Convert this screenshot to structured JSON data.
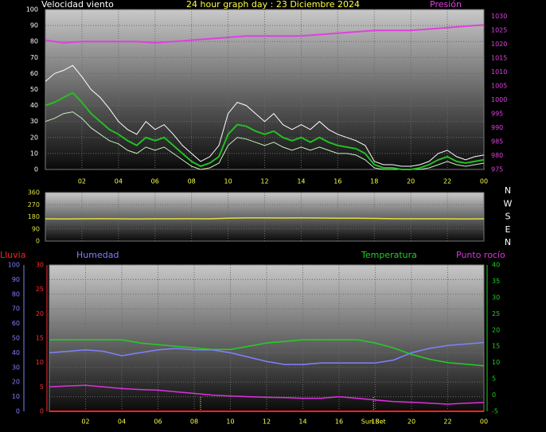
{
  "chart_data": [
    {
      "type": "line",
      "title": "24 hour graph day : 23 Diciembre 2024",
      "ylabel": "Velocidad viento",
      "y2label": "Presión",
      "xlim": [
        0,
        24
      ],
      "xticks": [
        {
          "value": 2,
          "label": "02"
        },
        {
          "value": 4,
          "label": "04"
        },
        {
          "value": 6,
          "label": "06"
        },
        {
          "value": 8,
          "label": "08"
        },
        {
          "value": 10,
          "label": "10"
        },
        12,
        14,
        16,
        18,
        20,
        22,
        {
          "value": 24,
          "label": "00"
        }
      ],
      "ylim": [
        0,
        100
      ],
      "yticks": [
        0,
        10,
        20,
        30,
        40,
        50,
        60,
        70,
        80,
        90,
        100
      ],
      "y2lim": [
        975,
        1032.5
      ],
      "y2ticks": [
        975,
        980,
        985,
        990,
        995,
        1000,
        1005,
        1010,
        1015,
        1020,
        1025,
        1030
      ],
      "grid": true,
      "series": [
        {
          "color": "#ffffff",
          "width": 1,
          "x": [
            0,
            0.5,
            1,
            1.5,
            2,
            2.5,
            3,
            3.5,
            4,
            4.5,
            5,
            5.5,
            6,
            6.5,
            7,
            7.5,
            8,
            8.5,
            9,
            9.5,
            10,
            10.5,
            11,
            11.5,
            12,
            12.5,
            13,
            13.5,
            14,
            14.5,
            15,
            15.5,
            16,
            16.5,
            17,
            17.5,
            18,
            18.5,
            19,
            19.5,
            20,
            20.5,
            21,
            21.5,
            22,
            22.5,
            23,
            23.5,
            24
          ],
          "values": [
            55,
            60,
            62,
            65,
            58,
            50,
            45,
            38,
            30,
            25,
            22,
            30,
            25,
            28,
            22,
            15,
            10,
            5,
            8,
            15,
            35,
            42,
            40,
            35,
            30,
            35,
            28,
            25,
            28,
            25,
            30,
            25,
            22,
            20,
            18,
            15,
            5,
            3,
            3,
            2,
            2,
            3,
            5,
            10,
            12,
            8,
            6,
            8,
            9
          ]
        },
        {
          "color": "#c8f0c0",
          "width": 1,
          "x": [
            0,
            0.5,
            1,
            1.5,
            2,
            2.5,
            3,
            3.5,
            4,
            4.5,
            5,
            5.5,
            6,
            6.5,
            7,
            7.5,
            8,
            8.5,
            9,
            9.5,
            10,
            10.5,
            11,
            11.5,
            12,
            12.5,
            13,
            13.5,
            14,
            14.5,
            15,
            15.5,
            16,
            16.5,
            17,
            17.5,
            18,
            18.5,
            19,
            19.5,
            20,
            20.5,
            21,
            21.5,
            22,
            22.5,
            23,
            23.5,
            24
          ],
          "values": [
            30,
            32,
            35,
            36,
            32,
            26,
            22,
            18,
            16,
            12,
            10,
            14,
            12,
            14,
            10,
            6,
            2,
            0,
            1,
            4,
            15,
            20,
            19,
            17,
            15,
            17,
            14,
            12,
            14,
            12,
            14,
            12,
            10,
            10,
            9,
            6,
            1,
            0,
            0,
            0,
            0,
            0,
            1,
            3,
            5,
            3,
            2,
            3,
            4
          ]
        },
        {
          "color": "#22c022",
          "width": 2,
          "x": [
            0,
            0.5,
            1,
            1.5,
            2,
            2.5,
            3,
            3.5,
            4,
            4.5,
            5,
            5.5,
            6,
            6.5,
            7,
            7.5,
            8,
            8.5,
            9,
            9.5,
            10,
            10.5,
            11,
            11.5,
            12,
            12.5,
            13,
            13.5,
            14,
            14.5,
            15,
            15.5,
            16,
            16.5,
            17,
            17.5,
            18,
            18.5,
            19,
            19.5,
            20,
            20.5,
            21,
            21.5,
            22,
            22.5,
            23,
            23.5,
            24
          ],
          "values": [
            40,
            42,
            45,
            48,
            42,
            35,
            30,
            25,
            22,
            18,
            15,
            20,
            18,
            20,
            15,
            10,
            5,
            2,
            4,
            8,
            22,
            28,
            27,
            24,
            22,
            24,
            20,
            18,
            20,
            17,
            20,
            17,
            15,
            14,
            13,
            10,
            3,
            1,
            1,
            0,
            0,
            1,
            3,
            6,
            8,
            5,
            4,
            5,
            6
          ]
        },
        {
          "color": "#e040e0",
          "width": 2,
          "axis": "y2",
          "x": [
            0,
            1,
            2,
            3,
            4,
            5,
            6,
            7,
            8,
            9,
            10,
            11,
            12,
            13,
            14,
            15,
            16,
            17,
            18,
            19,
            20,
            21,
            22,
            23,
            24
          ],
          "values": [
            1021.5,
            1020.5,
            1021,
            1021,
            1021,
            1021,
            1020.5,
            1021,
            1021.5,
            1022,
            1022.5,
            1023,
            1023,
            1023,
            1023,
            1023.5,
            1024,
            1024.5,
            1025,
            1025,
            1025,
            1025.5,
            1026,
            1026.5,
            1027
          ]
        }
      ]
    },
    {
      "type": "line",
      "compass": [
        "N",
        "W",
        "S",
        "E",
        "N"
      ],
      "xlim": [
        0,
        24
      ],
      "xticks": [
        {
          "value": 2,
          "label": "02"
        },
        {
          "value": 4,
          "label": "04"
        },
        {
          "value": 6,
          "label": "06"
        },
        {
          "value": 8,
          "label": "08"
        },
        {
          "value": 10,
          "label": "10"
        },
        12,
        14,
        16,
        18,
        20,
        22,
        {
          "value": 24,
          "label": "00"
        }
      ],
      "ylim": [
        0,
        360
      ],
      "yticks": [
        0,
        90,
        180,
        270,
        360
      ],
      "grid": true,
      "series": [
        {
          "color": "#e0e040",
          "width": 1.5,
          "x": [
            0,
            1,
            2,
            3,
            4,
            5,
            6,
            7,
            8,
            9,
            10,
            11,
            12,
            13,
            14,
            15,
            16,
            17,
            18,
            19,
            20,
            21,
            22,
            23,
            24
          ],
          "values": [
            165,
            164,
            165,
            166,
            165,
            164,
            165,
            165,
            166,
            165,
            170,
            172,
            172,
            171,
            172,
            171,
            170,
            170,
            168,
            166,
            165,
            165,
            165,
            164,
            165
          ]
        }
      ]
    },
    {
      "type": "line",
      "xlim": [
        0,
        24
      ],
      "xticks": [
        {
          "value": 2,
          "label": "02"
        },
        {
          "value": 4,
          "label": "04"
        },
        {
          "value": 6,
          "label": "06"
        },
        {
          "value": 8,
          "label": "08"
        },
        {
          "value": 10,
          "label": "10"
        },
        12,
        14,
        16,
        18,
        20,
        22,
        {
          "value": 24,
          "label": "00"
        }
      ],
      "ylim": [
        0,
        100
      ],
      "yticks": [
        0,
        10,
        20,
        30,
        40,
        50,
        60,
        70,
        80,
        90,
        100
      ],
      "y3lim": [
        0,
        30
      ],
      "y3ticks": [
        0,
        5,
        10,
        15,
        20,
        25,
        30
      ],
      "y2lim": [
        -5,
        40
      ],
      "y2ticks": [
        -5,
        0,
        5,
        10,
        15,
        20,
        25,
        30,
        35,
        40
      ],
      "grid": true,
      "events": [
        {
          "x": 8.35
        },
        {
          "x": 17.9,
          "label": "Sun Set"
        }
      ],
      "series": [
        {
          "name": "Lluvia",
          "color": "#ff2020",
          "width": 2,
          "axis": "y3",
          "x": [
            0,
            1,
            2,
            3,
            4,
            5,
            6,
            7,
            8,
            9,
            10,
            11,
            12,
            13,
            14,
            15,
            16,
            17,
            18,
            19,
            20,
            21,
            22,
            23,
            24
          ],
          "values": [
            0,
            0,
            0,
            0,
            0,
            0,
            0,
            0,
            0,
            0,
            0,
            0,
            0,
            0,
            0,
            0,
            0,
            0,
            0,
            0,
            0,
            0,
            0,
            0,
            0
          ]
        },
        {
          "name": "Humedad",
          "color": "#8080ff",
          "width": 1.5,
          "x": [
            0,
            1,
            2,
            3,
            4,
            5,
            6,
            7,
            8,
            9,
            10,
            11,
            12,
            13,
            14,
            15,
            16,
            17,
            18,
            19,
            20,
            21,
            22,
            23,
            24
          ],
          "values": [
            40,
            41,
            42,
            41,
            38,
            40,
            42,
            43,
            42,
            42,
            40,
            37,
            34,
            32,
            32,
            33,
            33,
            33,
            33,
            35,
            40,
            43,
            45,
            46,
            47
          ]
        },
        {
          "name": "Temperatura",
          "color": "#22d022",
          "width": 1.5,
          "axis": "y2",
          "x": [
            0,
            1,
            2,
            3,
            4,
            5,
            6,
            7,
            8,
            9,
            10,
            11,
            12,
            13,
            14,
            15,
            16,
            17,
            18,
            19,
            20,
            21,
            22,
            23,
            24
          ],
          "values": [
            17,
            17,
            17,
            17,
            17,
            16,
            15.5,
            15,
            14.5,
            14,
            14,
            15,
            16,
            16.5,
            17,
            17,
            17,
            17,
            16,
            14.5,
            12.5,
            11,
            10,
            9.5,
            9
          ]
        },
        {
          "name": "Punto rocío",
          "color": "#e030e0",
          "width": 1.5,
          "axis": "y2",
          "x": [
            0,
            1,
            2,
            3,
            4,
            5,
            6,
            7,
            8,
            9,
            10,
            11,
            12,
            13,
            14,
            15,
            16,
            17,
            18,
            19,
            20,
            21,
            22,
            23,
            24
          ],
          "values": [
            2.5,
            2.8,
            3,
            2.5,
            2,
            1.7,
            1.5,
            1,
            0.5,
            0,
            -0.3,
            -0.5,
            -0.7,
            -0.8,
            -1,
            -1,
            -0.5,
            -1,
            -1.5,
            -2,
            -2.2,
            -2.5,
            -2.8,
            -2.5,
            -2.3
          ]
        }
      ]
    }
  ]
}
